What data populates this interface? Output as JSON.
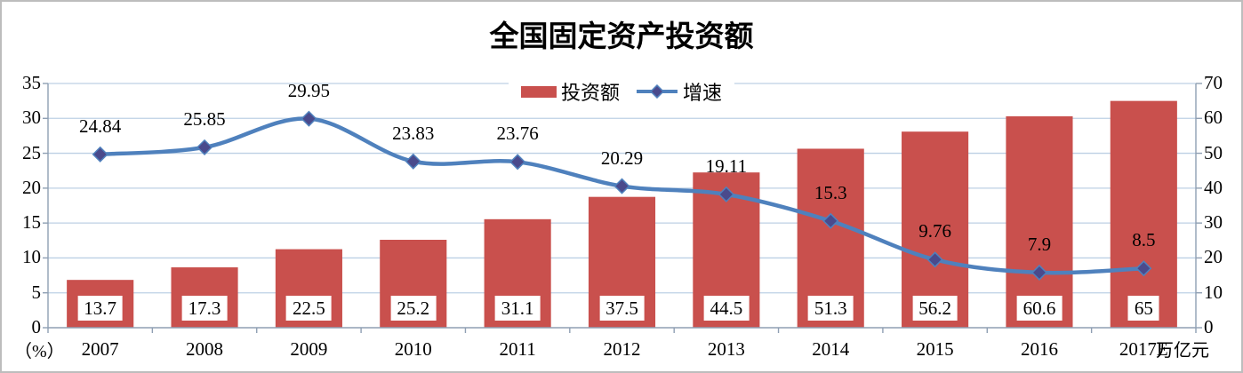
{
  "title": "全国固定资产投资额",
  "chart_data": {
    "type": "bar+line",
    "title": "全国固定资产投资额",
    "categories": [
      "2007",
      "2008",
      "2009",
      "2010",
      "2011",
      "2012",
      "2013",
      "2014",
      "2015",
      "2016",
      "2017E"
    ],
    "series": [
      {
        "name": "投资额",
        "type": "bar",
        "axis": "right",
        "unit": "万亿元",
        "color": "#c9504d",
        "label_style": "white box inside bar bottom",
        "values": [
          13.7,
          17.3,
          22.5,
          25.2,
          31.1,
          37.5,
          44.5,
          51.3,
          56.2,
          60.6,
          65
        ]
      },
      {
        "name": "增速",
        "type": "line",
        "axis": "left",
        "unit": "%",
        "color": "#4f81bd",
        "marker": "diamond",
        "marker_color": "#4a4a8c",
        "smooth": true,
        "values": [
          24.84,
          25.85,
          29.95,
          23.83,
          23.76,
          20.29,
          19.11,
          15.3,
          9.76,
          7.9,
          8.5
        ]
      }
    ],
    "left_axis": {
      "unit_label": "（%）",
      "min": 0,
      "max": 35,
      "step": 5,
      "ticks": [
        "35",
        "30",
        "25",
        "20",
        "15",
        "10",
        "5",
        "0"
      ]
    },
    "right_axis": {
      "unit_label": "万亿元",
      "min": 0,
      "max": 70,
      "step": 10,
      "ticks": [
        "70",
        "60",
        "50",
        "40",
        "30",
        "20",
        "10",
        "0"
      ]
    },
    "legend_position": "top-center",
    "gridlines": true,
    "colors": {
      "gridline": "#bdd0e4",
      "axis_line": "#8f9fb3",
      "label_text": "#000000",
      "bar_label_bg": "#ffffff",
      "frame_border": "#bdbdbd"
    }
  }
}
